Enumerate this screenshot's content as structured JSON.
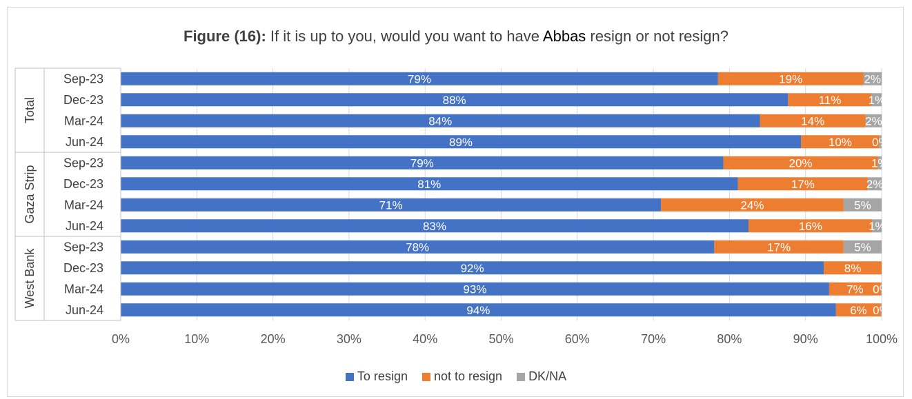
{
  "title": {
    "lead": "Figure (16):",
    "pre": " If it is up to you, would you want to have ",
    "name": "Abbas",
    "post": " resign or not resign?"
  },
  "chart_data": {
    "type": "bar",
    "orientation": "horizontal",
    "stacked": "percent",
    "groups": [
      "Total",
      "Gaza Strip",
      "West Bank"
    ],
    "categories": [
      {
        "group": "Total",
        "label": "Sep-23"
      },
      {
        "group": "Total",
        "label": "Dec-23"
      },
      {
        "group": "Total",
        "label": "Mar-24"
      },
      {
        "group": "Total",
        "label": "Jun-24"
      },
      {
        "group": "Gaza Strip",
        "label": "Sep-23"
      },
      {
        "group": "Gaza Strip",
        "label": "Dec-23"
      },
      {
        "group": "Gaza Strip",
        "label": "Mar-24"
      },
      {
        "group": "Gaza Strip",
        "label": "Jun-24"
      },
      {
        "group": "West Bank",
        "label": "Sep-23"
      },
      {
        "group": "West Bank",
        "label": "Dec-23"
      },
      {
        "group": "West Bank",
        "label": "Mar-24"
      },
      {
        "group": "West Bank",
        "label": "Jun-24"
      }
    ],
    "series": [
      {
        "name": "To resign",
        "color": "#4472c4",
        "values": [
          78.5,
          87.7,
          84.0,
          89.4,
          79.2,
          81.1,
          71.0,
          82.5,
          78.0,
          92.4,
          93.1,
          94.0
        ],
        "labels": [
          "79%",
          "88%",
          "84%",
          "89%",
          "79%",
          "81%",
          "71%",
          "83%",
          "78%",
          "92%",
          "93%",
          "94%"
        ]
      },
      {
        "name": "not to resign",
        "color": "#ed7d31",
        "values": [
          19.1,
          11.0,
          13.9,
          10.3,
          20.3,
          17.1,
          24.0,
          16.3,
          17.0,
          7.6,
          6.8,
          5.9
        ],
        "labels": [
          "19%",
          "11%",
          "14%",
          "10%",
          "20%",
          "17%",
          "24%",
          "16%",
          "17%",
          "8%",
          "7%",
          "6%"
        ]
      },
      {
        "name": "DK/NA",
        "color": "#a5a5a5",
        "values": [
          2.4,
          1.3,
          2.1,
          0.3,
          0.5,
          1.8,
          5.0,
          1.2,
          5.0,
          0.0,
          0.1,
          0.1
        ],
        "labels": [
          "2%",
          "1%",
          "2%",
          "0%",
          "1%",
          "2%",
          "5%",
          "1%",
          "5%",
          "",
          "0%",
          "0%"
        ]
      }
    ],
    "xlim": [
      0,
      100
    ],
    "xticks": [
      "0%",
      "10%",
      "20%",
      "30%",
      "40%",
      "50%",
      "60%",
      "70%",
      "80%",
      "90%",
      "100%"
    ],
    "grid": true,
    "legend": "bottom"
  }
}
